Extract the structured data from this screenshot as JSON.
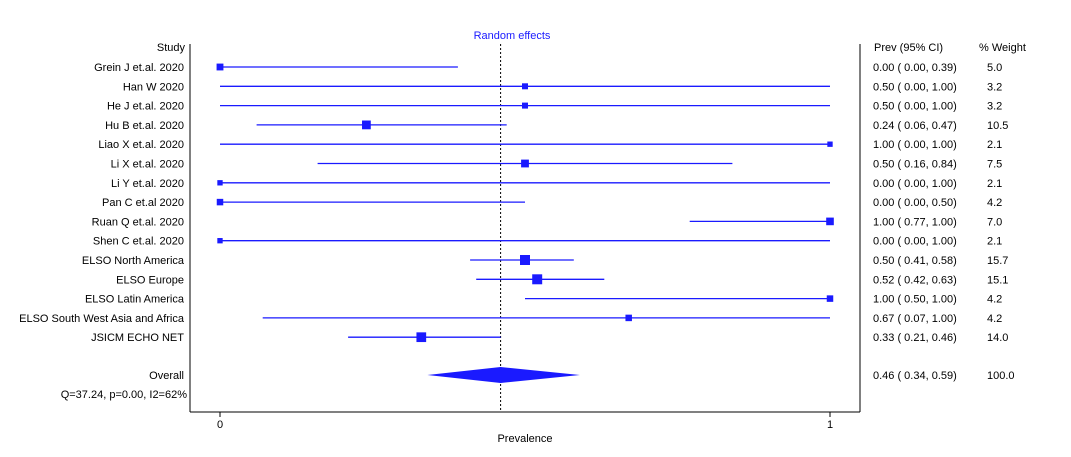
{
  "chart_data": {
    "type": "forest",
    "title": "Random effects",
    "xlabel": "Prevalence",
    "xlim": [
      0,
      1
    ],
    "xticks": [
      "0",
      "1"
    ],
    "headers": {
      "study": "Study",
      "estimate": "Prev (95% CI)",
      "weight": "% Weight"
    },
    "colors": {
      "marks": "#1a1aff",
      "axis": "#000000",
      "title": "#1a1aff"
    },
    "studies": [
      {
        "label": "Grein J et.al. 2020",
        "est": 0.0,
        "lo": 0.0,
        "hi": 0.39,
        "ci_text": "0.00  (  0.00,  0.39)",
        "weight": 5.0,
        "weight_text": "5.0"
      },
      {
        "label": "Han W 2020",
        "est": 0.5,
        "lo": 0.0,
        "hi": 1.0,
        "ci_text": "0.50  (  0.00,  1.00)",
        "weight": 3.2,
        "weight_text": "3.2"
      },
      {
        "label": "He J et.al. 2020",
        "est": 0.5,
        "lo": 0.0,
        "hi": 1.0,
        "ci_text": "0.50  (  0.00,  1.00)",
        "weight": 3.2,
        "weight_text": "3.2"
      },
      {
        "label": "Hu B et.al. 2020",
        "est": 0.24,
        "lo": 0.06,
        "hi": 0.47,
        "ci_text": "0.24  (  0.06,  0.47)",
        "weight": 10.5,
        "weight_text": "10.5"
      },
      {
        "label": "Liao X et.al. 2020",
        "est": 1.0,
        "lo": 0.0,
        "hi": 1.0,
        "ci_text": "1.00  (  0.00,  1.00)",
        "weight": 2.1,
        "weight_text": "2.1"
      },
      {
        "label": "Li X et.al. 2020",
        "est": 0.5,
        "lo": 0.16,
        "hi": 0.84,
        "ci_text": "0.50  (  0.16,  0.84)",
        "weight": 7.5,
        "weight_text": "7.5"
      },
      {
        "label": "Li Y et.al. 2020",
        "est": 0.0,
        "lo": 0.0,
        "hi": 1.0,
        "ci_text": "0.00  (  0.00,  1.00)",
        "weight": 2.1,
        "weight_text": "2.1"
      },
      {
        "label": "Pan C et.al 2020",
        "est": 0.0,
        "lo": 0.0,
        "hi": 0.5,
        "ci_text": "0.00  (  0.00,  0.50)",
        "weight": 4.2,
        "weight_text": "4.2"
      },
      {
        "label": "Ruan Q et.al. 2020",
        "est": 1.0,
        "lo": 0.77,
        "hi": 1.0,
        "ci_text": "1.00  (  0.77,  1.00)",
        "weight": 7.0,
        "weight_text": "7.0"
      },
      {
        "label": "Shen C et.al. 2020",
        "est": 0.0,
        "lo": 0.0,
        "hi": 1.0,
        "ci_text": "0.00  (  0.00,  1.00)",
        "weight": 2.1,
        "weight_text": "2.1"
      },
      {
        "label": "ELSO North America",
        "est": 0.5,
        "lo": 0.41,
        "hi": 0.58,
        "ci_text": "0.50  (  0.41,  0.58)",
        "weight": 15.7,
        "weight_text": "15.7"
      },
      {
        "label": "ELSO Europe",
        "est": 0.52,
        "lo": 0.42,
        "hi": 0.63,
        "ci_text": "0.52  (  0.42,  0.63)",
        "weight": 15.1,
        "weight_text": "15.1"
      },
      {
        "label": "ELSO Latin America",
        "est": 1.0,
        "lo": 0.5,
        "hi": 1.0,
        "ci_text": "1.00  (  0.50,  1.00)",
        "weight": 4.2,
        "weight_text": "4.2"
      },
      {
        "label": "ELSO South West Asia and Africa",
        "est": 0.67,
        "lo": 0.07,
        "hi": 1.0,
        "ci_text": "0.67  (  0.07,  1.00)",
        "weight": 4.2,
        "weight_text": "4.2"
      },
      {
        "label": "JSICM ECHO NET",
        "est": 0.33,
        "lo": 0.21,
        "hi": 0.46,
        "ci_text": "0.33  (  0.21,  0.46)",
        "weight": 14.0,
        "weight_text": "14.0"
      }
    ],
    "overall": {
      "label": "Overall",
      "est": 0.46,
      "lo": 0.34,
      "hi": 0.59,
      "ci_text": "0.46  (  0.34,  0.59)",
      "weight": 100.0,
      "weight_text": "100.0"
    },
    "heterogeneity": "Q=37.24, p=0.00, I2=62%"
  }
}
